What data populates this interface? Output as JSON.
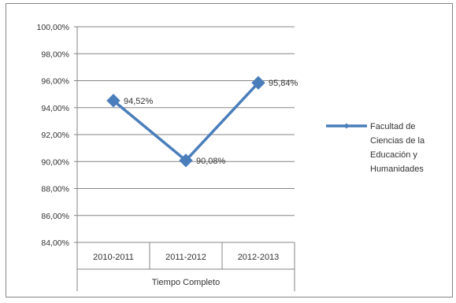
{
  "chart_data": {
    "type": "line",
    "categories": [
      "2010-2011",
      "2011-2012",
      "2012-2013"
    ],
    "group_label": "Tiempo Completo",
    "series": [
      {
        "name": "Facultad de Ciencias de la Educación y Humanidades",
        "name_lines": [
          "Facultad de",
          "Ciencias de la",
          "Educación y",
          "Humanidades"
        ],
        "values": [
          94.52,
          90.08,
          95.84
        ],
        "data_labels": [
          "94,52%",
          "90,08%",
          "95,84%"
        ],
        "color": "#4a7ebb"
      }
    ],
    "ylim": [
      84,
      100
    ],
    "yticks": [
      "100,00%",
      "98,00%",
      "96,00%",
      "94,00%",
      "92,00%",
      "90,00%",
      "88,00%",
      "86,00%",
      "84,00%"
    ],
    "grid": true,
    "legend_position": "right",
    "title": "",
    "xlabel": "",
    "ylabel": ""
  }
}
